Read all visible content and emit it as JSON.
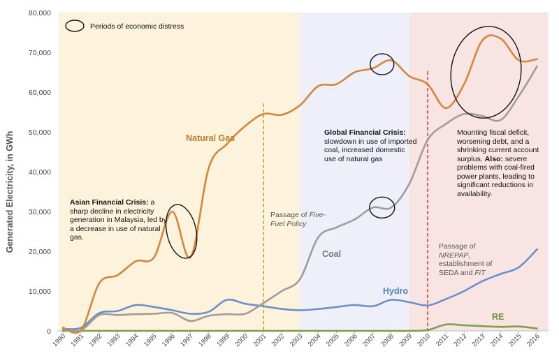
{
  "chart_data": {
    "type": "line",
    "ylabel": "Generated Electricity, in GWh",
    "xlabel": "",
    "ylim": [
      0,
      80000
    ],
    "yticks": [
      0,
      10000,
      20000,
      30000,
      40000,
      50000,
      60000,
      70000,
      80000
    ],
    "ytick_labels": [
      "0",
      "10,000",
      "20,000",
      "30,000",
      "40,000",
      "50,000",
      "60,000",
      "70,000",
      "80,000"
    ],
    "x": [
      1990,
      1991,
      1992,
      1993,
      1994,
      1995,
      1996,
      1997,
      1998,
      1999,
      2000,
      2001,
      2002,
      2003,
      2004,
      2005,
      2006,
      2007,
      2008,
      2009,
      2010,
      2011,
      2012,
      2013,
      2014,
      2015,
      2016
    ],
    "xtick_labels": [
      "1990",
      "1991",
      "1992",
      "1993",
      "1994",
      "1995",
      "1996",
      "1997",
      "1998",
      "1999",
      "2000",
      "2001",
      "2002",
      "2003",
      "2004",
      "2005",
      "2006",
      "2007",
      "2008",
      "2009",
      "2010",
      "2011",
      "2012",
      "2013",
      "2014",
      "2015",
      "2016"
    ],
    "series": [
      {
        "name": "Natural Gas",
        "color": "#d4873c",
        "values": [
          800,
          200,
          12000,
          14000,
          17500,
          18500,
          30000,
          18500,
          41000,
          47000,
          51500,
          54500,
          54300,
          56700,
          61500,
          62000,
          65000,
          66000,
          68000,
          64000,
          62000,
          56000,
          62000,
          73000,
          73500,
          68000,
          68300
        ]
      },
      {
        "name": "Coal",
        "color": "#a09c9c",
        "values": [
          300,
          200,
          4000,
          4000,
          4200,
          4300,
          4500,
          2500,
          3800,
          4200,
          4300,
          7000,
          10000,
          13000,
          23500,
          26000,
          28000,
          31000,
          31000,
          37000,
          48000,
          52000,
          54500,
          54000,
          53000,
          59000,
          66500
        ]
      },
      {
        "name": "Hydro",
        "color": "#6b8fc7",
        "values": [
          500,
          800,
          4500,
          5000,
          6500,
          6000,
          5200,
          4300,
          4800,
          7800,
          6800,
          6200,
          5500,
          5200,
          5500,
          6000,
          6500,
          6200,
          7800,
          7200,
          6400,
          8000,
          10000,
          12500,
          14300,
          16000,
          20500
        ]
      },
      {
        "name": "RE",
        "color": "#7e9f4a",
        "values": [
          0,
          0,
          0,
          0,
          0,
          0,
          0,
          0,
          0,
          0,
          0,
          0,
          0,
          0,
          0,
          0,
          0,
          0,
          0,
          0,
          200,
          1600,
          1400,
          1200,
          1000,
          1100,
          600
        ]
      }
    ],
    "series_labels": [
      {
        "text": "Natural Gas",
        "color": "#c07a2e"
      },
      {
        "text": "Coal",
        "color": "#777777"
      },
      {
        "text": "Hydro",
        "color": "#5a7fb8"
      },
      {
        "text": "RE",
        "color": "#6f8f3e"
      }
    ],
    "shaded_periods": [
      {
        "from": 1990,
        "to": 2003,
        "color": "#fdf3dc"
      },
      {
        "from": 2003,
        "to": 2009,
        "color": "#eeeff9"
      },
      {
        "from": 2009,
        "to": 2016,
        "color": "#f9e4e4"
      }
    ],
    "vlines": [
      {
        "year": 2001,
        "color": "#b8a040"
      },
      {
        "year": 2010,
        "color": "#d23c3c"
      }
    ],
    "distress_ellipses": [
      {
        "year": 1996.5,
        "value": 25000
      },
      {
        "year": 2007.5,
        "value": 67000
      },
      {
        "year": 2007.5,
        "value": 31000
      },
      {
        "year": 2013.2,
        "value": 65000
      }
    ],
    "legend": {
      "text": "Periods of economic distress",
      "placement": "top-left"
    }
  },
  "annotations": {
    "asian_title": "Asian Financial Crisis:",
    "asian_body": " a sharp decline in electricity generation in Malaysia, led by a decrease in use of natural gas.",
    "global_title": "Global Financial Crisis:",
    "global_body": " slowdown in use of imported coal, increased domestic use of natural gas",
    "fiscal_body": "Mounting fiscal deficit, worsening debt, and a shrinking current account surplus.",
    "fiscal_also": "Also:",
    "fiscal_also_body": " severe problems with coal-fired power plants, leading to significant reductions in availability.",
    "fivefuel_pre": "Passage of ",
    "fivefuel_em": "Five-Fuel Policy",
    "nrepap_pre": "Passage of ",
    "nrepap_em": "NREPAP",
    "nrepap_mid": ", establishment of SEDA and ",
    "nrepap_fit": "FiT"
  }
}
